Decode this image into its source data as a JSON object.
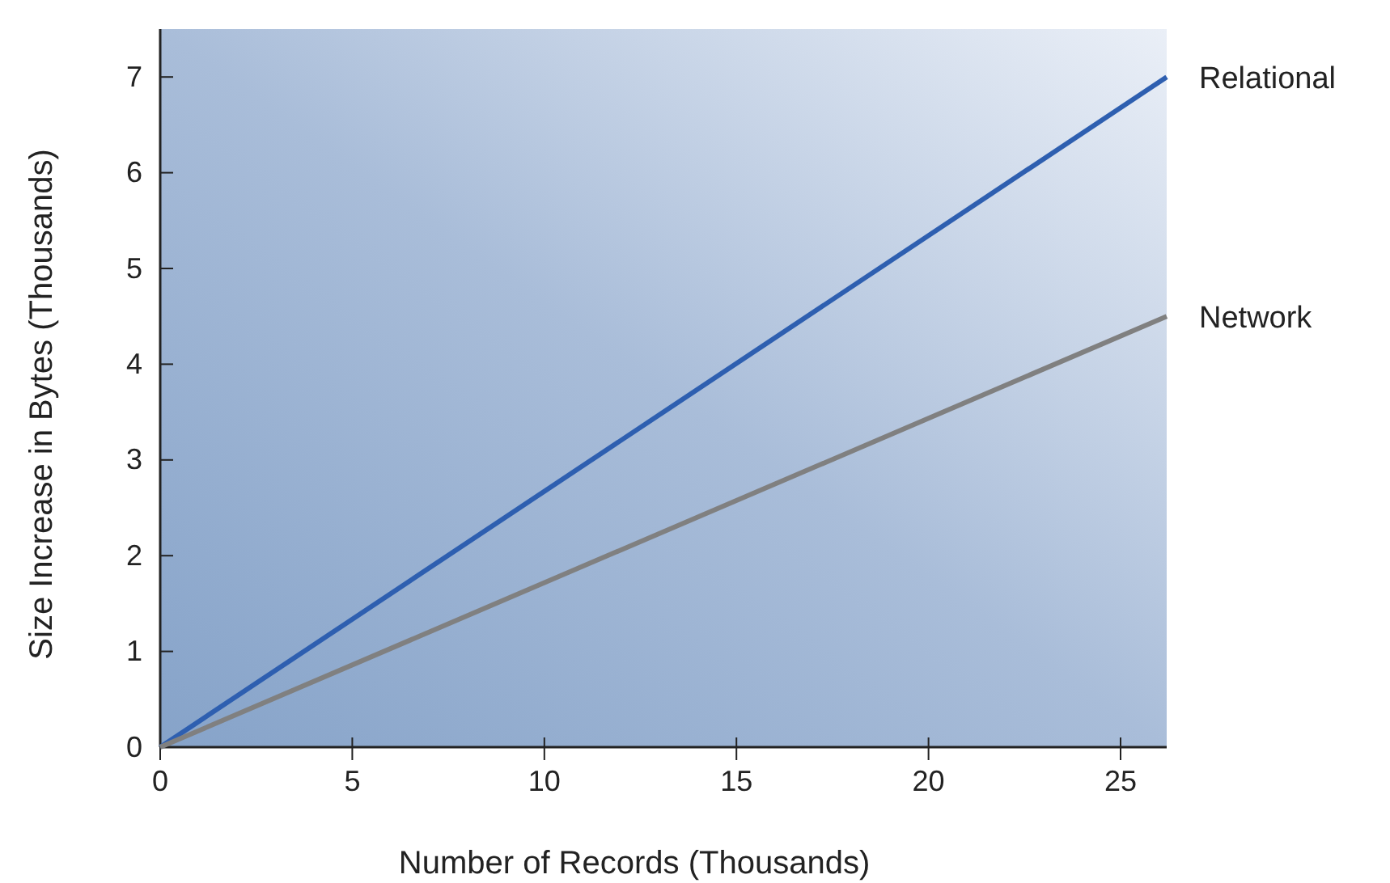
{
  "chart_data": {
    "type": "line",
    "xlabel": "Number of Records (Thousands)",
    "ylabel": "Size Increase in Bytes (Thousands)",
    "x": [
      0,
      26.2
    ],
    "xlim": [
      0,
      26.2
    ],
    "xticks": [
      0,
      5,
      10,
      15,
      20,
      25
    ],
    "ylim": [
      0,
      7.5
    ],
    "yticks": [
      0,
      1,
      2,
      3,
      4,
      5,
      6,
      7
    ],
    "grid": false,
    "legend": false,
    "marker": "none",
    "line_style": "solid",
    "series": [
      {
        "name": "Relational",
        "color": "#2e5fb0",
        "values": [
          0,
          7.0
        ]
      },
      {
        "name": "Network",
        "color": "#808080",
        "values": [
          0,
          4.5
        ]
      }
    ]
  }
}
